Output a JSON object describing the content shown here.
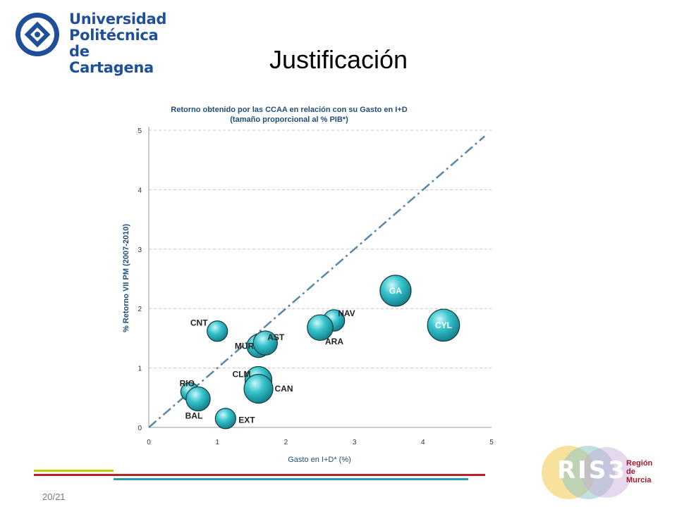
{
  "header": {
    "logo": {
      "line1": "Universidad",
      "line2": "Politécnica",
      "line3": "de Cartagena"
    },
    "title": "Justificación"
  },
  "chart_data": {
    "type": "scatter",
    "title_line1": "Retorno obtenido por las CCAA en relación con su Gasto en I+D",
    "title_line2": "(tamaño proporcional al % PIB*)",
    "xlabel": "Gasto en I+D* (%)",
    "ylabel": "% Retorno VII PM (2007-2010)",
    "xlim": [
      0,
      5
    ],
    "ylim": [
      0,
      5
    ],
    "x_ticks": [
      "0",
      "1",
      "2",
      "3",
      "4",
      "5"
    ],
    "y_ticks": [
      "0",
      "1",
      "2",
      "3",
      "4",
      "5"
    ],
    "grid": "horizontal dashed",
    "reference_line": {
      "from": [
        0,
        0
      ],
      "to": [
        4.9,
        4.9
      ],
      "style": "dash-dot"
    },
    "points": [
      {
        "label": "CNT",
        "x": 1.0,
        "y": 1.62,
        "size": 1.0
      },
      {
        "label": "MUR",
        "x": 1.6,
        "y": 1.37,
        "size": 1.25
      },
      {
        "label": "AST",
        "x": 1.7,
        "y": 1.42,
        "size": 1.35
      },
      {
        "label": "NAV",
        "x": 2.7,
        "y": 1.8,
        "size": 1.1
      },
      {
        "label": "ARA",
        "x": 2.5,
        "y": 1.68,
        "size": 1.5
      },
      {
        "label": "GA",
        "x": 3.6,
        "y": 2.3,
        "size": 2.0
      },
      {
        "label": "CYL",
        "x": 4.3,
        "y": 1.72,
        "size": 2.1
      },
      {
        "label": "RIO",
        "x": 0.6,
        "y": 0.6,
        "size": 0.8
      },
      {
        "label": "BAL",
        "x": 0.72,
        "y": 0.48,
        "size": 1.35
      },
      {
        "label": "CLM",
        "x": 1.6,
        "y": 0.8,
        "size": 1.6
      },
      {
        "label": "CAN",
        "x": 1.6,
        "y": 0.65,
        "size": 1.8
      },
      {
        "label": "EXT",
        "x": 1.12,
        "y": 0.15,
        "size": 1.0
      }
    ],
    "colors": {
      "bubble": "#2fb8c2",
      "bubble_light": "#a8eef2",
      "reference": "#5b86a6",
      "title": "#1f4e79",
      "grid": "#c8c8c8"
    }
  },
  "footer": {
    "page": "20/21",
    "bar_colors": [
      "#c8c800",
      "#b8202a",
      "#2a9bb0"
    ]
  },
  "ris_logo": {
    "text": "RIS3",
    "region_line1": "Región",
    "region_line2": "de",
    "region_line3": "Murcia"
  }
}
